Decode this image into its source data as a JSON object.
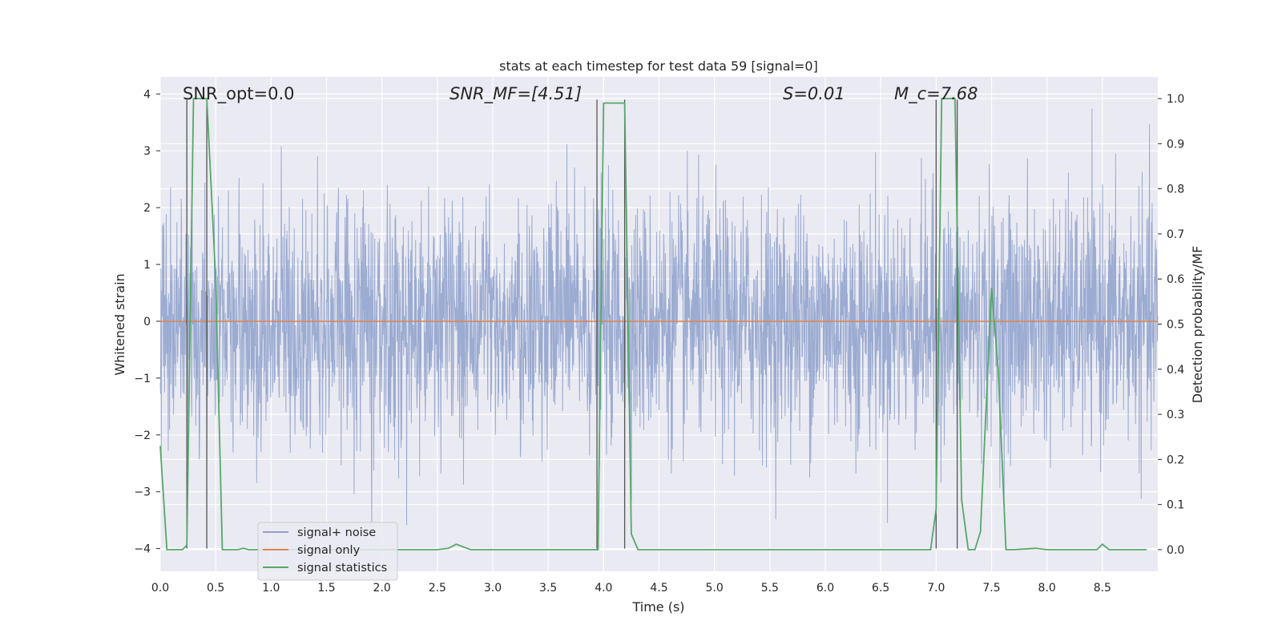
{
  "chart_data": {
    "type": "line",
    "title": "stats at each timestep for test data 59 [signal=0]",
    "xlabel": "Time (s)",
    "ylabel": "Whitened strain",
    "y2label": "Detection probability/MF",
    "xlim": [
      0.0,
      9.0
    ],
    "ylim": [
      -4.4,
      4.3
    ],
    "y2lim": [
      -0.048,
      1.048
    ],
    "xticks": [
      0.0,
      0.5,
      1.0,
      1.5,
      2.0,
      2.5,
      3.0,
      3.5,
      4.0,
      4.5,
      5.0,
      5.5,
      6.0,
      6.5,
      7.0,
      7.5,
      8.0,
      8.5
    ],
    "xtick_labels": [
      "0.0",
      "0.5",
      "1.0",
      "1.5",
      "2.0",
      "2.5",
      "3.0",
      "3.5",
      "4.0",
      "4.5",
      "5.0",
      "5.5",
      "6.0",
      "6.5",
      "7.0",
      "7.5",
      "8.0",
      "8.5"
    ],
    "yticks": [
      4,
      3,
      2,
      1,
      0,
      -1,
      -2,
      -3,
      -4
    ],
    "ytick_labels": [
      "4",
      "3",
      "2",
      "1",
      "0",
      "−1",
      "−2",
      "−3",
      "−4"
    ],
    "y2ticks": [
      1.0,
      0.9,
      0.8,
      0.7,
      0.6,
      0.5,
      0.4,
      0.3,
      0.2,
      0.1,
      0.0
    ],
    "y2tick_labels": [
      "1.0",
      "0.9",
      "0.8",
      "0.7",
      "0.6",
      "0.5",
      "0.4",
      "0.3",
      "0.2",
      "0.1",
      "0.0"
    ],
    "grid": true,
    "legend_position": "lower-left",
    "annotations": [
      {
        "text": "SNR_opt=0.0",
        "x": 0.2,
        "y": 4.0
      },
      {
        "text": "SNR_MF=[4.51]",
        "x": 2.6,
        "y": 4.0
      },
      {
        "text": "S=0.01",
        "x": 5.6,
        "y": 4.0
      },
      {
        "text": "M_c=7.68",
        "x": 6.6,
        "y": 4.0
      }
    ],
    "series": [
      {
        "name": "signal+ noise",
        "color": "#8da0cb",
        "axis": "left",
        "style": "dense noise, roughly uniform, values within about [-3.7, 3.9]",
        "x_range": [
          0.0,
          9.0
        ]
      },
      {
        "name": "signal only",
        "color": "#dd8452",
        "axis": "left",
        "x": [
          0.0,
          9.0
        ],
        "values": [
          0.0,
          0.0
        ]
      },
      {
        "name": "signal statistics",
        "color": "#55a868",
        "axis": "right",
        "x": [
          0.0,
          0.06,
          0.1,
          0.2,
          0.24,
          0.3,
          0.42,
          0.5,
          0.56,
          0.7,
          0.75,
          0.8,
          1.0,
          2.5,
          2.6,
          2.67,
          2.8,
          3.0,
          3.5,
          3.9,
          3.95,
          4.0,
          4.19,
          4.25,
          4.31,
          4.4,
          5.0,
          6.5,
          6.95,
          7.0,
          7.05,
          7.17,
          7.23,
          7.29,
          7.35,
          7.4,
          7.5,
          7.56,
          7.63,
          7.7,
          7.9,
          8.0,
          8.45,
          8.5,
          8.56,
          8.6,
          8.9
        ],
        "values": [
          0.23,
          0.0,
          0.0,
          0.0,
          0.01,
          1.0,
          1.0,
          0.6,
          0.0,
          0.0,
          0.003,
          0.0,
          0.0,
          0.0,
          0.003,
          0.012,
          0.0,
          0.0,
          0.0,
          0.0,
          0.0,
          0.99,
          0.99,
          0.035,
          0.0,
          0.0,
          0.0,
          0.0,
          0.0,
          0.09,
          1.0,
          1.0,
          0.11,
          0.0,
          0.0,
          0.04,
          0.58,
          0.4,
          0.0,
          0.0,
          0.003,
          0.0,
          0.0,
          0.012,
          0.0,
          0.0,
          0.0
        ]
      },
      {
        "name": "event markers",
        "color": "#555555",
        "axis": "left",
        "type": "vlines",
        "x": [
          0.24,
          0.42,
          3.94,
          4.19,
          7.0,
          7.19
        ]
      }
    ]
  },
  "legend": {
    "items": [
      {
        "label": "signal+ noise",
        "color": "#8da0cb"
      },
      {
        "label": "signal only",
        "color": "#dd8452"
      },
      {
        "label": "signal statistics",
        "color": "#55a868"
      }
    ]
  }
}
